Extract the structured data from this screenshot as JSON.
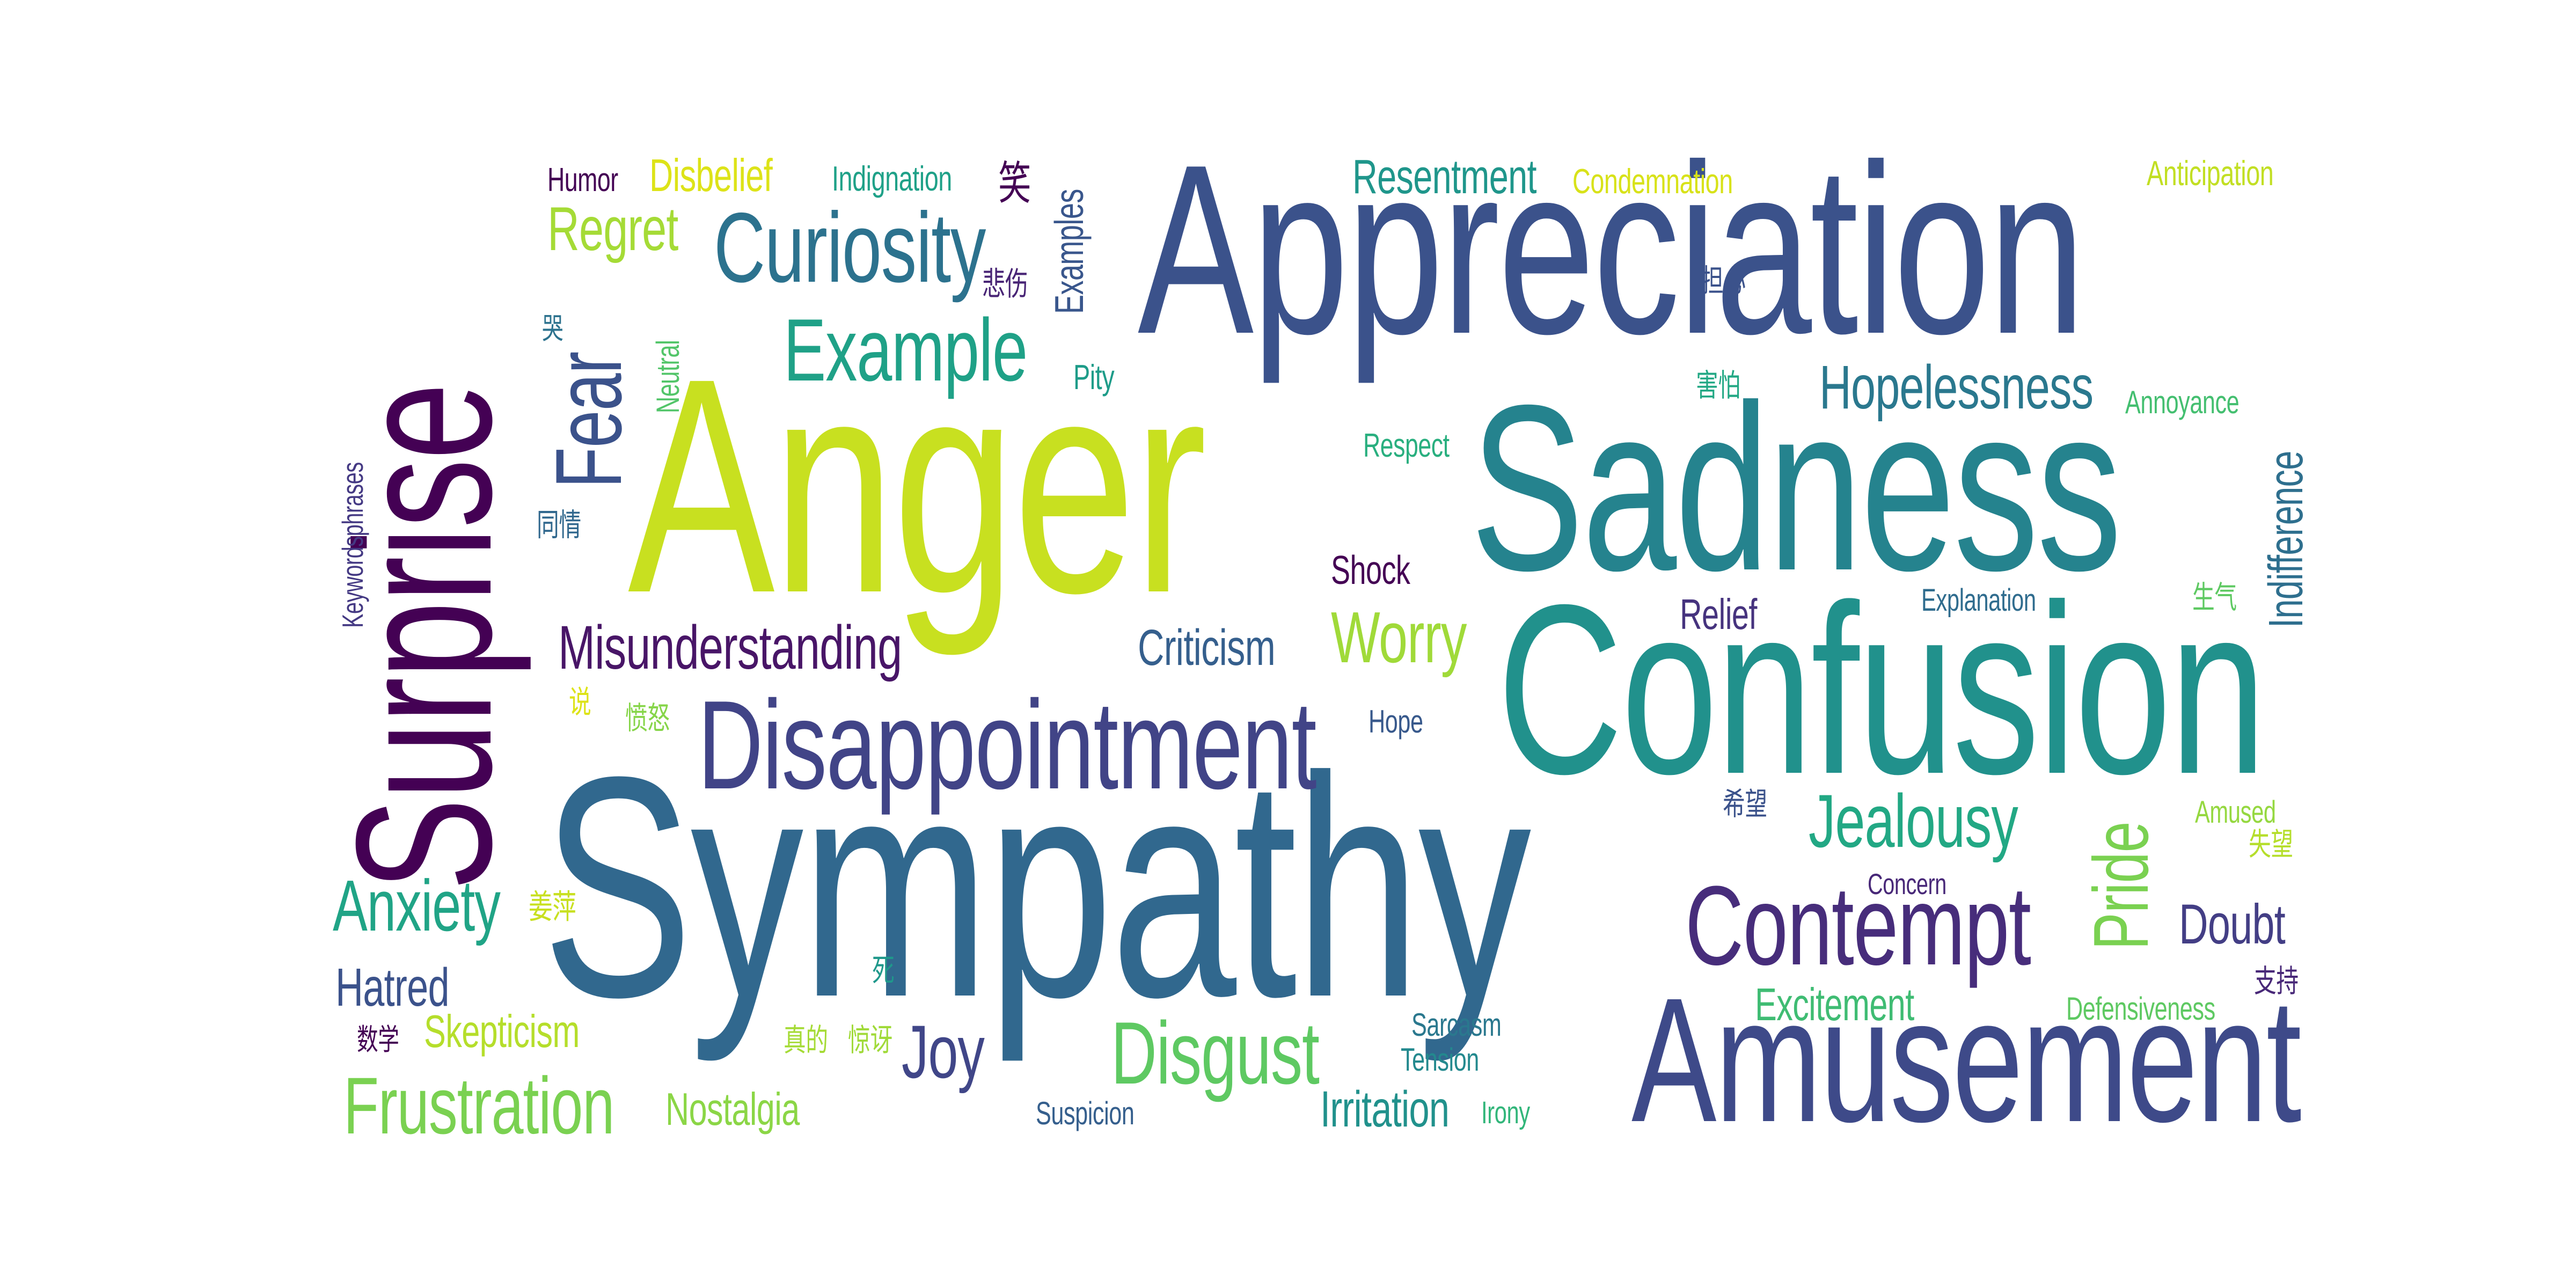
{
  "words": [
    {
      "text": "Sympathy",
      "color": "#31688e"
    },
    {
      "text": "Anger",
      "color": "#c8e020"
    },
    {
      "text": "Appreciation",
      "color": "#3b528b"
    },
    {
      "text": "Confusion",
      "color": "#21918c"
    },
    {
      "text": "Sadness",
      "color": "#25838e"
    },
    {
      "text": "Surprise",
      "color": "#440154"
    },
    {
      "text": "Amusement",
      "color": "#3e4a89"
    },
    {
      "text": "Disappointment",
      "color": "#414487"
    },
    {
      "text": "Contempt",
      "color": "#472d7b"
    },
    {
      "text": "Curiosity",
      "color": "#2c728e"
    },
    {
      "text": "Example",
      "color": "#1fa187"
    },
    {
      "text": "Fear",
      "color": "#3b528b"
    },
    {
      "text": "Disgust",
      "color": "#5ec962"
    },
    {
      "text": "Frustration",
      "color": "#7ad151"
    },
    {
      "text": "Misunderstanding",
      "color": "#481567"
    },
    {
      "text": "Hopelessness",
      "color": "#2a788e"
    },
    {
      "text": "Jealousy",
      "color": "#22a884"
    },
    {
      "text": "Worry",
      "color": "#a0da39"
    },
    {
      "text": "Anxiety",
      "color": "#20a486"
    },
    {
      "text": "Pride",
      "color": "#7ad151"
    },
    {
      "text": "Joy",
      "color": "#404688"
    },
    {
      "text": "Regret",
      "color": "#a5db36"
    },
    {
      "text": "Criticism",
      "color": "#355f8d"
    },
    {
      "text": "Resentment",
      "color": "#1f968b"
    },
    {
      "text": "Hatred",
      "color": "#3b528b"
    },
    {
      "text": "Doubt",
      "color": "#433e85"
    },
    {
      "text": "Indifference",
      "color": "#2e6f8e"
    },
    {
      "text": "Irritation",
      "color": "#21918c"
    },
    {
      "text": "Excitement",
      "color": "#3fbc73"
    },
    {
      "text": "Skepticism",
      "color": "#b5de2b"
    },
    {
      "text": "Disbelief",
      "color": "#dde318"
    },
    {
      "text": "Nostalgia",
      "color": "#8bd646"
    },
    {
      "text": "Relief",
      "color": "#46337e"
    },
    {
      "text": "Shock",
      "color": "#440154"
    },
    {
      "text": "Examples",
      "color": "#39568c"
    },
    {
      "text": "Indignation",
      "color": "#1fa188"
    },
    {
      "text": "Condemnation",
      "color": "#d8e219"
    },
    {
      "text": "Anticipation",
      "color": "#c2df23"
    },
    {
      "text": "Humor",
      "color": "#440154"
    },
    {
      "text": "Pity",
      "color": "#1e9c89"
    },
    {
      "text": "Respect",
      "color": "#29af7f"
    },
    {
      "text": "Annoyance",
      "color": "#44bf70"
    },
    {
      "text": "Neutral",
      "color": "#52c569"
    },
    {
      "text": "Keywordsphrases",
      "color": "#443983"
    },
    {
      "text": "Explanation",
      "color": "#2f6c8e"
    },
    {
      "text": "Hope",
      "color": "#38598c"
    },
    {
      "text": "Concern",
      "color": "#482878"
    },
    {
      "text": "Amused",
      "color": "#95d840"
    },
    {
      "text": "Defensiveness",
      "color": "#5ec962"
    },
    {
      "text": "Sarcasm",
      "color": "#2a788e"
    },
    {
      "text": "Tension",
      "color": "#23898e"
    },
    {
      "text": "Irony",
      "color": "#32b67a"
    },
    {
      "text": "Suspicion",
      "color": "#355f8d"
    },
    {
      "text": "笑",
      "color": "#440154"
    },
    {
      "text": "悲伤",
      "color": "#482475"
    },
    {
      "text": "担心",
      "color": "#3b528b"
    },
    {
      "text": "害怕",
      "color": "#22a884"
    },
    {
      "text": "哭",
      "color": "#2c728e"
    },
    {
      "text": "同情",
      "color": "#31688e"
    },
    {
      "text": "说",
      "color": "#dde318"
    },
    {
      "text": "愤怒",
      "color": "#86d549"
    },
    {
      "text": "生气",
      "color": "#5ec962"
    },
    {
      "text": "希望",
      "color": "#3b528b"
    },
    {
      "text": "失望",
      "color": "#b5de2b"
    },
    {
      "text": "姜萍",
      "color": "#c8e020"
    },
    {
      "text": "死",
      "color": "#1f988b"
    },
    {
      "text": "数学",
      "color": "#440154"
    },
    {
      "text": "真的",
      "color": "#a5db36"
    },
    {
      "text": "惊讶",
      "color": "#a0da39"
    },
    {
      "text": "支持",
      "color": "#482878"
    }
  ]
}
